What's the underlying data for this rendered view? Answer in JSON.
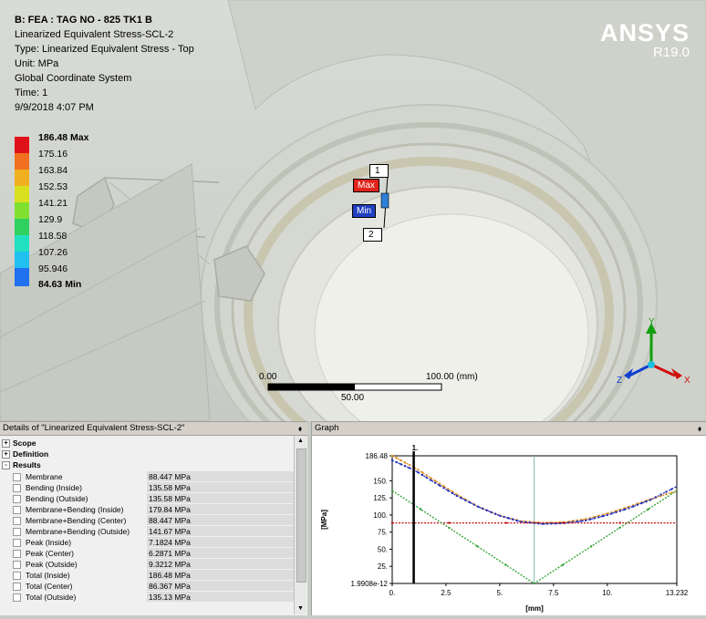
{
  "viewport": {
    "header": {
      "title": "B: FEA : TAG NO - 825 TK1 B",
      "object": "Linearized Equivalent Stress-SCL-2",
      "type": "Type: Linearized Equivalent Stress - Top",
      "unit": "Unit: MPa",
      "coordinate_system": "Global Coordinate System",
      "time": "Time: 1",
      "date": "9/9/2018 4:07 PM"
    },
    "legend": {
      "labels": [
        "186.48 Max",
        "175.16",
        "163.84",
        "152.53",
        "141.21",
        "129.9",
        "118.58",
        "107.26",
        "95.946",
        "84.63 Min"
      ],
      "colors": [
        "#e0101a",
        "#f07020",
        "#f0b020",
        "#d8e020",
        "#80e030",
        "#30d060",
        "#20e0c0",
        "#20c0f0",
        "#2070f0",
        "#1010d0"
      ]
    },
    "brand": {
      "name": "ANSYS",
      "version": "R19.0"
    },
    "probe_tags": {
      "point1": "1",
      "max": "Max",
      "min": "Min",
      "point2": "2"
    },
    "scale_bar": {
      "start": "0.00",
      "end": "100.00 (mm)",
      "mid": "50.00"
    },
    "triad": {
      "y": "Y",
      "x": "X",
      "z": "Z",
      "colors": {
        "x": "#d01010",
        "y": "#10a010",
        "z": "#1040d0"
      }
    }
  },
  "details": {
    "title": "Details of \"Linearized Equivalent Stress-SCL-2\"",
    "pin": "⬧",
    "groups": [
      {
        "label": "Scope",
        "state": "+"
      },
      {
        "label": "Definition",
        "state": "+"
      },
      {
        "label": "Results",
        "state": "-"
      }
    ],
    "results": [
      {
        "name": "Membrane",
        "value": "88.447 MPa"
      },
      {
        "name": "Bending (Inside)",
        "value": "135.58 MPa"
      },
      {
        "name": "Bending (Outside)",
        "value": "135.58 MPa"
      },
      {
        "name": "Membrane+Bending (Inside)",
        "value": "179.84 MPa"
      },
      {
        "name": "Membrane+Bending (Center)",
        "value": "88.447 MPa"
      },
      {
        "name": "Membrane+Bending (Outside)",
        "value": "141.67 MPa"
      },
      {
        "name": "Peak (Inside)",
        "value": "7.1824 MPa"
      },
      {
        "name": "Peak (Center)",
        "value": "6.2871 MPa"
      },
      {
        "name": "Peak (Outside)",
        "value": "9.3212 MPa"
      },
      {
        "name": "Total (Inside)",
        "value": "186.48 MPa"
      },
      {
        "name": "Total (Center)",
        "value": "86.367 MPa"
      },
      {
        "name": "Total (Outside)",
        "value": "135.13 MPa"
      }
    ]
  },
  "graph": {
    "title": "Graph",
    "pin": "⬧",
    "chart_data": {
      "type": "line",
      "xlabel": "[mm]",
      "ylabel": "[MPa]",
      "xlim": [
        0,
        13.232
      ],
      "ylim": [
        1.9908e-12,
        186.48
      ],
      "x_ticks": [
        "0.",
        "2.5",
        "5.",
        "7.5",
        "10.",
        "13.232"
      ],
      "y_ticks": [
        "186.48",
        "150.",
        "125.",
        "100.",
        "75.",
        "50.",
        "25.",
        "1.9908e-12"
      ],
      "marker_label": "1.",
      "marker_x": 1.0,
      "cursor_x": 6.6,
      "series": [
        {
          "color": "#e09020",
          "x": [
            0,
            1,
            2,
            3,
            4,
            5,
            6,
            7,
            8,
            9,
            10,
            11,
            12,
            13.232
          ],
          "values": [
            186.48,
            170,
            150,
            130,
            112,
            99,
            91,
            88.4,
            89.5,
            94,
            102,
            112,
            123,
            135
          ]
        },
        {
          "color": "#2030c0",
          "x": [
            0,
            1,
            2,
            3,
            4,
            5,
            6,
            7,
            8,
            9,
            10,
            11,
            12,
            13.232
          ],
          "values": [
            179.84,
            166,
            147,
            128,
            112,
            99,
            90,
            87,
            88,
            92,
            100,
            110,
            122,
            141.67
          ]
        },
        {
          "color": "#c01010",
          "x": [
            0,
            13.232
          ],
          "values": [
            88.447,
            88.447
          ]
        },
        {
          "color": "#30a030",
          "x": [
            0,
            6.6,
            13.232
          ],
          "values": [
            135.58,
            1.9908e-12,
            135.58
          ]
        }
      ]
    }
  }
}
